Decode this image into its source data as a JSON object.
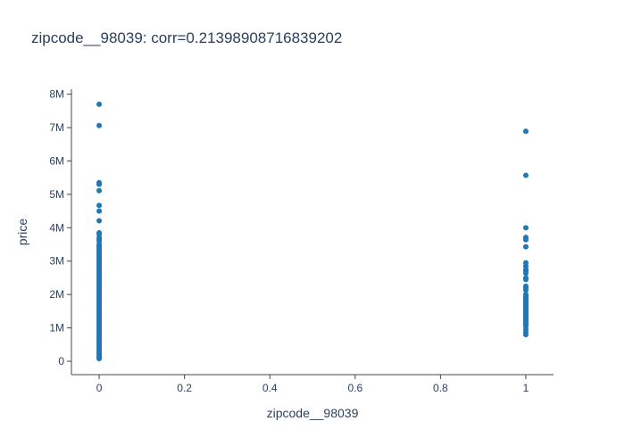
{
  "chart_data": {
    "type": "scatter",
    "title": "zipcode__98039: corr=0.21398908716839202",
    "xlabel": "zipcode__98039",
    "ylabel": "price",
    "xlim": [
      -0.065,
      1.065
    ],
    "ylim": [
      -400000,
      8150000
    ],
    "x_ticks": [
      0,
      0.2,
      0.4,
      0.6,
      0.8,
      1
    ],
    "x_tick_labels": [
      "0",
      "0.2",
      "0.4",
      "0.6",
      "0.8",
      "1"
    ],
    "y_ticks": [
      0,
      1000000,
      2000000,
      3000000,
      4000000,
      5000000,
      6000000,
      7000000,
      8000000
    ],
    "y_tick_labels": [
      "0",
      "1M",
      "2M",
      "3M",
      "4M",
      "5M",
      "6M",
      "7M",
      "8M"
    ],
    "grid": false,
    "marker_color": "#1f77b4",
    "text_color": "#2a3f5f",
    "axis_color": "#444444",
    "series": [
      {
        "x": [
          0,
          0,
          0,
          0,
          0,
          0,
          0,
          0,
          0,
          0,
          0,
          0,
          0,
          0,
          0,
          0,
          0,
          0,
          0,
          0,
          0,
          0,
          0,
          0,
          0,
          0,
          0,
          0,
          0,
          0,
          0,
          0,
          0,
          0,
          0,
          0,
          0,
          0,
          0,
          0,
          0,
          0,
          0,
          0,
          0,
          0,
          0,
          0,
          0,
          0,
          0,
          0,
          0,
          0,
          0,
          0,
          0,
          0,
          0,
          0,
          0,
          0,
          0,
          0,
          0,
          0,
          0,
          0,
          0,
          0,
          0,
          0,
          0,
          0,
          0,
          0,
          0,
          0,
          0,
          0,
          0,
          0,
          0,
          0,
          1,
          1,
          1,
          1,
          1,
          1,
          1,
          1,
          1,
          1,
          1,
          1,
          1,
          1,
          1,
          1,
          1,
          1,
          1,
          1,
          1,
          1,
          1,
          1,
          1,
          1,
          1,
          1,
          1,
          1,
          1,
          1,
          1,
          1,
          1,
          1,
          1,
          1,
          1
        ],
        "y": [
          7700000,
          7060000,
          5350000,
          5300000,
          5110000,
          4670000,
          4500000,
          4210000,
          3850000,
          3800000,
          3700000,
          3650000,
          3600000,
          3500000,
          3400000,
          3300000,
          3200000,
          3100000,
          3000000,
          2900000,
          2800000,
          2700000,
          2600000,
          2500000,
          2400000,
          2300000,
          2200000,
          2100000,
          2000000,
          1900000,
          1800000,
          1700000,
          1600000,
          1500000,
          1400000,
          1300000,
          1200000,
          1100000,
          1000000,
          900000,
          800000,
          700000,
          600000,
          500000,
          400000,
          350000,
          300000,
          250000,
          200000,
          150000,
          120000,
          100000,
          80000,
          3450000,
          3350000,
          3250000,
          3150000,
          3050000,
          2950000,
          2850000,
          2750000,
          2650000,
          2550000,
          2450000,
          2350000,
          2250000,
          2150000,
          2050000,
          1950000,
          1850000,
          1750000,
          1650000,
          1550000,
          1450000,
          1350000,
          1250000,
          1150000,
          1050000,
          950000,
          850000,
          750000,
          650000,
          550000,
          450000,
          6890000,
          5570000,
          4000000,
          3710000,
          3640000,
          3430000,
          2950000,
          2850000,
          2750000,
          2700000,
          2640000,
          2500000,
          2450000,
          2250000,
          2200000,
          2130000,
          2000000,
          1950000,
          1900000,
          1850000,
          1800000,
          1750000,
          1700000,
          1650000,
          1600000,
          1550000,
          1500000,
          1450000,
          1400000,
          1350000,
          1300000,
          1250000,
          1200000,
          1150000,
          1100000,
          1050000,
          950000,
          870000,
          800000
        ]
      }
    ]
  }
}
